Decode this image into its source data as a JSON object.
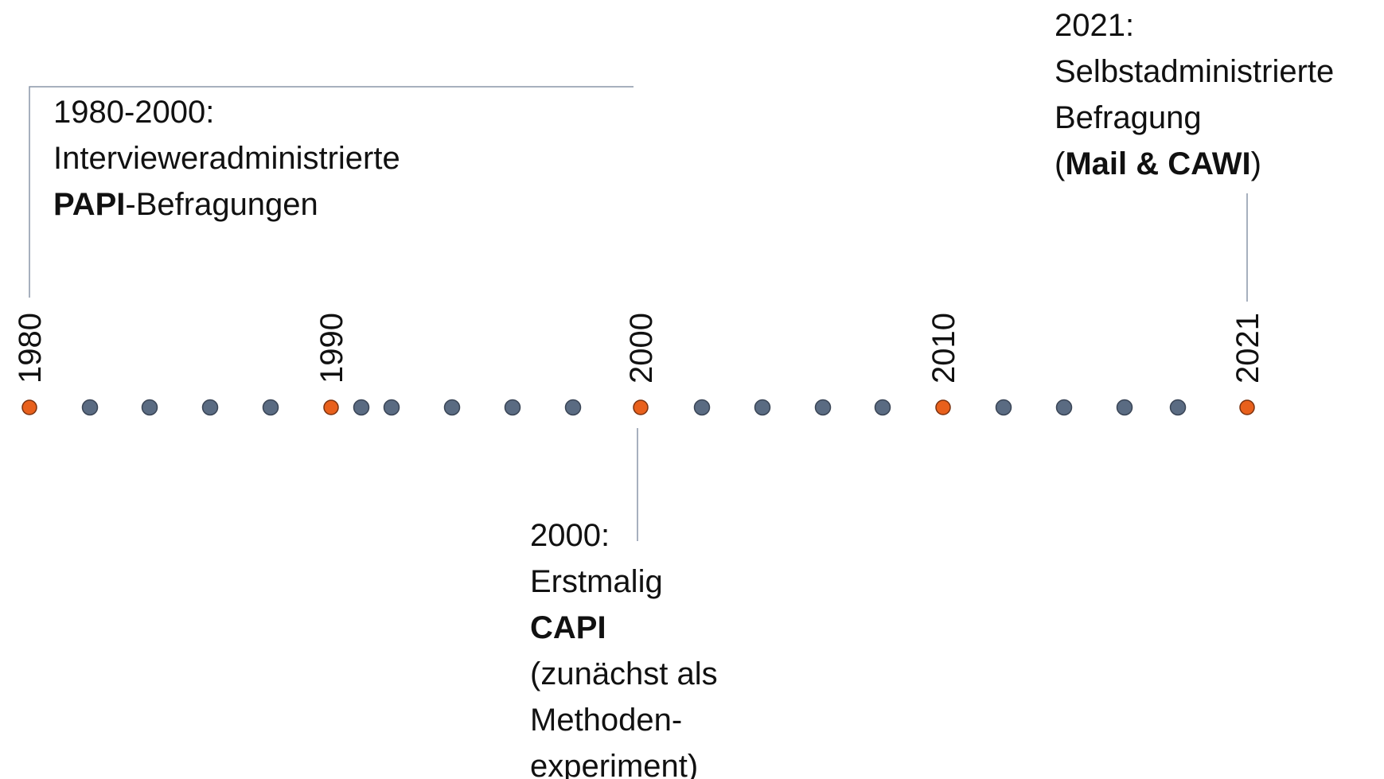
{
  "timeline": {
    "years": [
      "1980",
      "1990",
      "2000",
      "2010",
      "2021"
    ],
    "events": [
      {
        "lines": [
          [
            "1980-2000:"
          ],
          [
            "Intervieweradministrierte"
          ],
          [
            {
              "text": "PAPI",
              "bold": true
            },
            "-Befragungen"
          ]
        ]
      },
      {
        "lines": [
          [
            "2000:"
          ],
          [
            "Erstmalig"
          ],
          [
            {
              "text": "CAPI",
              "bold": true
            }
          ],
          [
            "(zunächst als"
          ],
          [
            "Methoden-"
          ],
          [
            "experiment)"
          ]
        ]
      },
      {
        "lines": [
          [
            "2021:"
          ],
          [
            "Selbstadministrierte"
          ],
          [
            "Befragung"
          ],
          [
            "(",
            {
              "text": "Mail & CAWI",
              "bold": true
            },
            ")"
          ]
        ]
      }
    ]
  }
}
